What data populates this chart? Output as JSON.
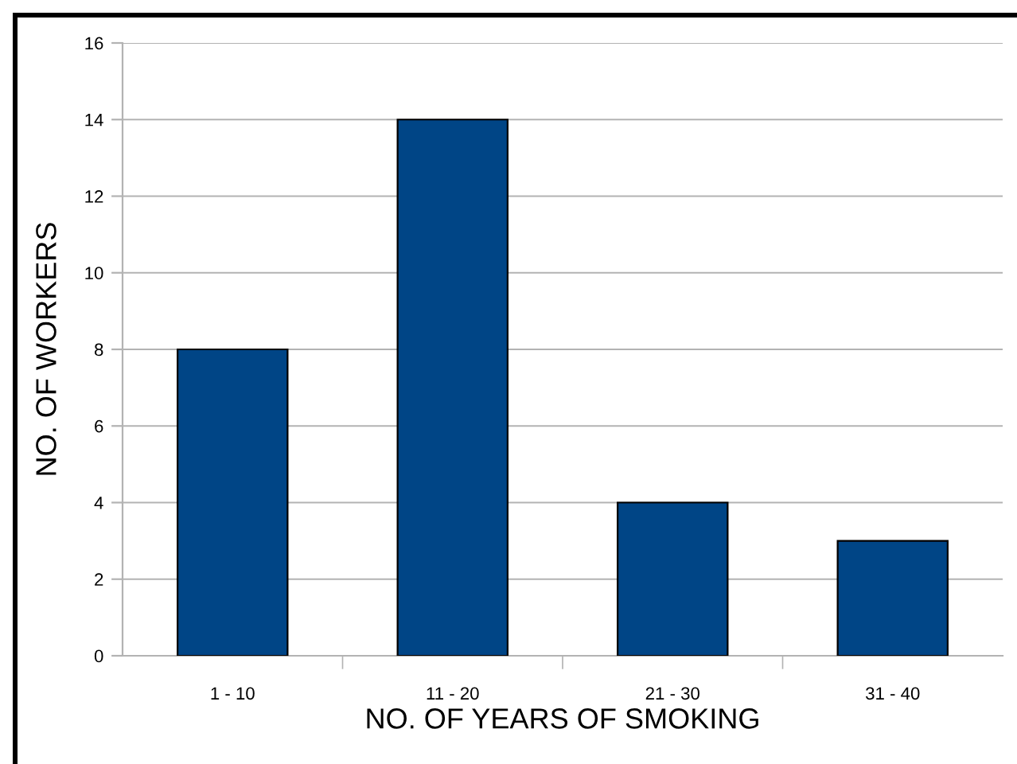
{
  "chart_data": {
    "type": "bar",
    "xlabel": "NO. OF YEARS OF SMOKING",
    "ylabel": "NO. OF WORKERS",
    "categories": [
      "1 - 10",
      "11 - 20",
      "21 - 30",
      "31 - 40"
    ],
    "values": [
      8,
      14,
      4,
      3
    ],
    "color": "#004586",
    "ylim": [
      0,
      16
    ],
    "yticks": [
      0,
      2,
      4,
      6,
      8,
      10,
      12,
      14,
      16
    ],
    "grid": "y",
    "legend": false
  }
}
